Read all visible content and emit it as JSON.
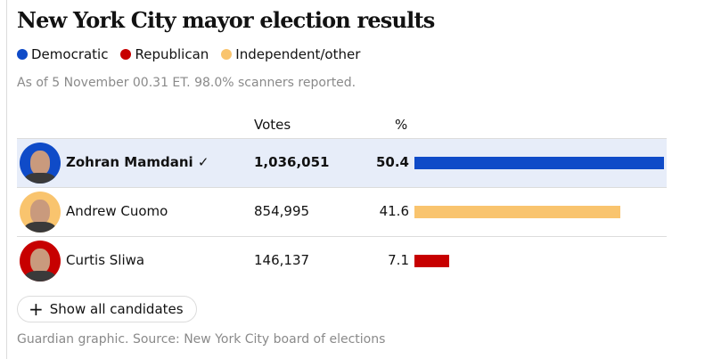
{
  "title": "New York City mayor election results",
  "legend": [
    {
      "label": "Democratic",
      "color": "#0f4bc8"
    },
    {
      "label": "Republican",
      "color": "#c70000"
    },
    {
      "label": "Independent/other",
      "color": "#f9c46e"
    }
  ],
  "subtitle": "As of 5 November 00.31 ET. 98.0% scanners reported.",
  "headers": {
    "votes": "Votes",
    "pct": "%"
  },
  "candidates": [
    {
      "name": "Zohran Mamdani",
      "check": "✓",
      "votes": "1,036,051",
      "pct": "50.4",
      "color": "#0f4bc8"
    },
    {
      "name": "Andrew Cuomo",
      "votes": "854,995",
      "pct": "41.6",
      "color": "#f9c46e"
    },
    {
      "name": "Curtis Sliwa",
      "votes": "146,137",
      "pct": "7.1",
      "color": "#c70000"
    }
  ],
  "show_all": "Show all candidates",
  "footer": "Guardian graphic. Source: New York City board of elections",
  "chart_data": {
    "type": "bar",
    "title": "New York City mayor election results",
    "categories": [
      "Zohran Mamdani",
      "Andrew Cuomo",
      "Curtis Sliwa"
    ],
    "values": [
      50.4,
      41.6,
      7.1
    ],
    "votes": [
      1036051,
      854995,
      146137
    ],
    "xlabel": "%",
    "ylabel": "",
    "xlim": [
      0,
      50.4
    ]
  }
}
